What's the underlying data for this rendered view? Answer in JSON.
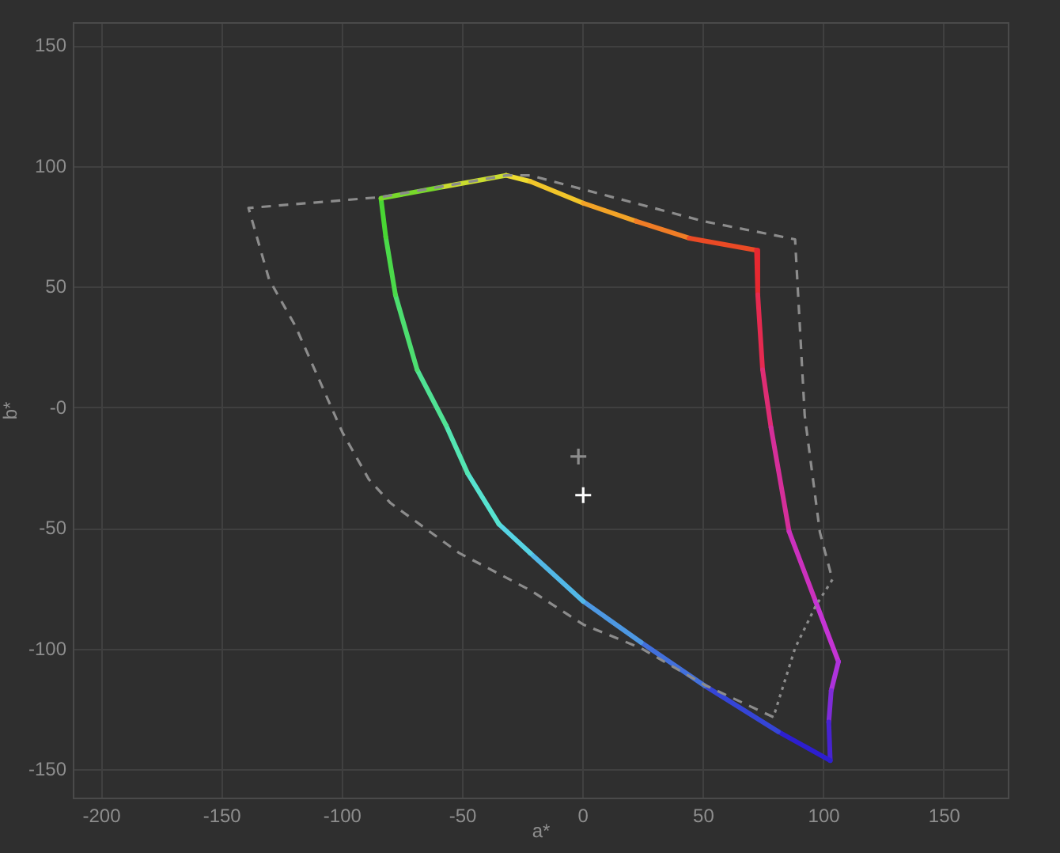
{
  "chart_data": {
    "type": "line",
    "xlabel": "a*",
    "ylabel": "b*",
    "xlim": [
      -212,
      177
    ],
    "ylim": [
      -162,
      160
    ],
    "xticks": [
      -200,
      -150,
      -100,
      -50,
      0,
      50,
      100,
      150
    ],
    "yticks": [
      -150,
      -100,
      -50,
      {
        "value": 0,
        "label": "-0"
      },
      50,
      100,
      150
    ],
    "grid": true,
    "series": [
      {
        "color": "#eedb30",
        "x": [
          -32,
          -22
        ],
        "values": [
          96.5,
          94
        ]
      },
      {
        "color": "#f1c52a",
        "x": [
          -22,
          0
        ],
        "values": [
          94,
          85
        ]
      },
      {
        "color": "#f2a327",
        "x": [
          0,
          22
        ],
        "values": [
          85,
          77.5
        ]
      },
      {
        "color": "#f07d26",
        "x": [
          22,
          44
        ],
        "values": [
          77.5,
          70.5
        ]
      },
      {
        "color": "#ea4a25",
        "x": [
          44,
          72
        ],
        "values": [
          70.5,
          65.5
        ]
      },
      {
        "color": "#e62830",
        "x": [
          72,
          72.5
        ],
        "values": [
          65.5,
          47
        ]
      },
      {
        "color": "#e52a50",
        "x": [
          72.5,
          74.5
        ],
        "values": [
          47,
          16
        ]
      },
      {
        "color": "#de2d74",
        "x": [
          74.5,
          78
        ],
        "values": [
          16,
          -8
        ]
      },
      {
        "color": "#d52f9a",
        "x": [
          78,
          85.5
        ],
        "values": [
          -8,
          -51
        ]
      },
      {
        "color": "#cc31be",
        "x": [
          85.5,
          96.5
        ],
        "values": [
          -51,
          -80
        ]
      },
      {
        "color": "#c534d4",
        "x": [
          96.5,
          106
        ],
        "values": [
          -80,
          -105
        ]
      },
      {
        "color": "#ae33dc",
        "x": [
          106,
          103
        ],
        "values": [
          -105,
          -117
        ]
      },
      {
        "color": "#7f2cd8",
        "x": [
          103,
          102
        ],
        "values": [
          -117,
          -130
        ]
      },
      {
        "color": "#4723d0",
        "x": [
          102,
          102.6
        ],
        "values": [
          -130,
          -146
        ]
      },
      {
        "color": "#2d1fd0",
        "x": [
          102.6,
          81
        ],
        "values": [
          -146,
          -134
        ]
      },
      {
        "color": "#3545d6",
        "x": [
          81,
          50.5
        ],
        "values": [
          -134,
          -115
        ]
      },
      {
        "color": "#4270dc",
        "x": [
          50.5,
          24
        ],
        "values": [
          -115,
          -97
        ]
      },
      {
        "color": "#4d98e3",
        "x": [
          24,
          0
        ],
        "values": [
          -97,
          -80
        ]
      },
      {
        "color": "#52b8e7",
        "x": [
          0,
          -22
        ],
        "values": [
          -80,
          -60
        ]
      },
      {
        "color": "#56d4e4",
        "x": [
          -22,
          -35
        ],
        "values": [
          -60,
          -48
        ]
      },
      {
        "color": "#57e3d0",
        "x": [
          -35,
          -48
        ],
        "values": [
          -48,
          -27
        ]
      },
      {
        "color": "#54e5b2",
        "x": [
          -48,
          -57
        ],
        "values": [
          -27,
          -7
        ]
      },
      {
        "color": "#50e294",
        "x": [
          -57,
          -69
        ],
        "values": [
          -7,
          16
        ]
      },
      {
        "color": "#4dde70",
        "x": [
          -69,
          -78
        ],
        "values": [
          16,
          47
        ]
      },
      {
        "color": "#4bda4a",
        "x": [
          -78,
          -82
        ],
        "values": [
          47,
          71
        ]
      },
      {
        "color": "#49d633",
        "x": [
          -82,
          -84
        ],
        "values": [
          71,
          87
        ]
      },
      {
        "color": "#78d82b",
        "x": [
          -84,
          -58
        ],
        "values": [
          87,
          91.8
        ]
      },
      {
        "color": "#cadd2f",
        "x": [
          -58,
          -32
        ],
        "values": [
          91.8,
          96.5
        ]
      },
      {
        "color": "#8c8c8c",
        "line_style": "dashed",
        "x": [
          79,
          50.5,
          24,
          0,
          -22,
          -51.5,
          -80,
          -89,
          -100,
          -119.5,
          -130.5,
          -139,
          -84,
          -32,
          -22,
          50,
          88,
          92,
          98.3,
          103.5
        ],
        "values": [
          -128,
          -114.7,
          -99.4,
          -89.6,
          -75.4,
          -60,
          -39.3,
          -29.5,
          -10,
          34,
          53.5,
          83,
          87.5,
          96.5,
          96.5,
          77.5,
          70,
          -3,
          -51.4,
          -71
        ]
      },
      {
        "color": "#8c8c8c",
        "line_style": "dotted",
        "x": [
          103.5,
          96.5,
          88,
          79
        ],
        "values": [
          -71,
          -82,
          -99.4,
          -128
        ]
      },
      {
        "type": "scatter",
        "color": "#8c8c8c",
        "marker": "cross",
        "x": [
          -2
        ],
        "values": [
          -20
        ]
      },
      {
        "type": "scatter",
        "color": "#ffffff",
        "marker": "cross",
        "x": [
          0
        ],
        "values": [
          -36
        ]
      }
    ]
  }
}
